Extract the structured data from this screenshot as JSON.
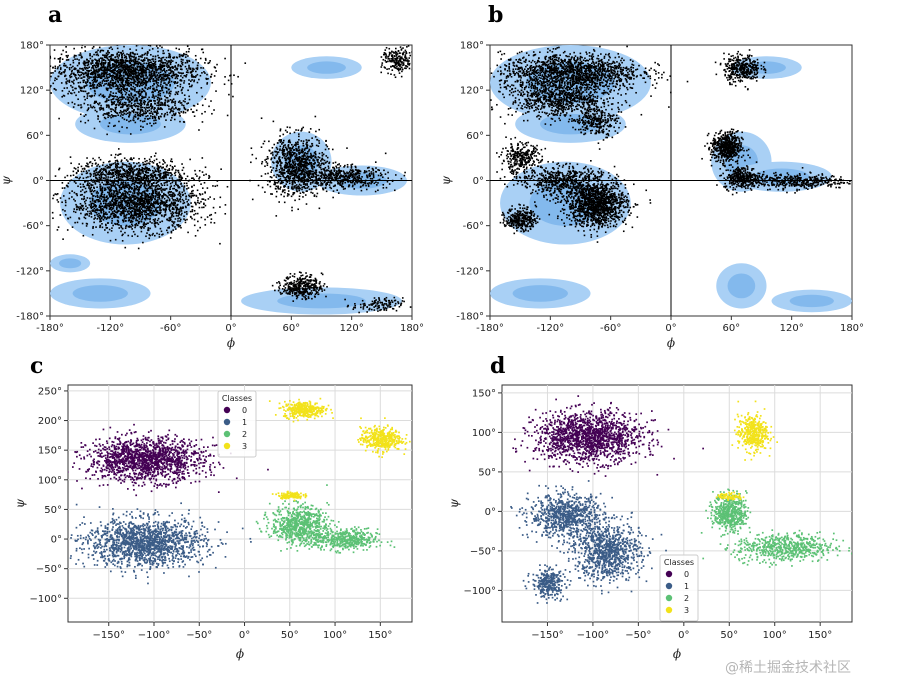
{
  "colors": {
    "favored": "#a9d0f5",
    "favored_dark": "#3d8fe0",
    "points": "#000000",
    "class0": "#440154",
    "class1": "#3b5c87",
    "class2": "#5cc175",
    "class3": "#f2e21a"
  },
  "watermark": "@稀土掘金技术社区",
  "chart_data": [
    {
      "panel": "a",
      "type": "scatter",
      "title": "a",
      "xlabel": "ϕ",
      "ylabel": "ψ",
      "xlim": [
        -180,
        180
      ],
      "ylim": [
        -180,
        180
      ],
      "xticks": [
        "-180°",
        "-120°",
        "-60°",
        "0°",
        "60°",
        "120°",
        "180°"
      ],
      "yticks": [
        "180°",
        "120°",
        "60°",
        "0°",
        "-60°",
        "-120°",
        "-180°"
      ],
      "favored_regions": [
        {
          "cx": -100,
          "cy": 130,
          "rx": 80,
          "ry": 50
        },
        {
          "cx": -100,
          "cy": 75,
          "rx": 55,
          "ry": 25
        },
        {
          "cx": -105,
          "cy": -30,
          "rx": 65,
          "ry": 55
        },
        {
          "cx": 70,
          "cy": 25,
          "rx": 30,
          "ry": 40
        },
        {
          "cx": 130,
          "cy": 0,
          "rx": 45,
          "ry": 20
        },
        {
          "cx": 95,
          "cy": 150,
          "rx": 35,
          "ry": 15
        },
        {
          "cx": -130,
          "cy": -150,
          "rx": 50,
          "ry": 20
        },
        {
          "cx": 90,
          "cy": -160,
          "rx": 80,
          "ry": 18
        },
        {
          "cx": -160,
          "cy": -110,
          "rx": 20,
          "ry": 12
        }
      ],
      "clusters": [
        {
          "cx": -105,
          "cy": 145,
          "rx": 75,
          "ry": 30,
          "n": 1800
        },
        {
          "cx": -95,
          "cy": 100,
          "rx": 55,
          "ry": 25,
          "n": 600
        },
        {
          "cx": -100,
          "cy": 10,
          "rx": 60,
          "ry": 20,
          "n": 700
        },
        {
          "cx": -95,
          "cy": -30,
          "rx": 65,
          "ry": 35,
          "n": 1700
        },
        {
          "cx": 65,
          "cy": 20,
          "rx": 30,
          "ry": 40,
          "n": 900
        },
        {
          "cx": 110,
          "cy": 5,
          "rx": 45,
          "ry": 15,
          "n": 450
        },
        {
          "cx": 70,
          "cy": -140,
          "rx": 20,
          "ry": 15,
          "n": 350
        },
        {
          "cx": 165,
          "cy": 160,
          "rx": 15,
          "ry": 18,
          "n": 200
        },
        {
          "cx": 145,
          "cy": -165,
          "rx": 25,
          "ry": 10,
          "n": 120
        }
      ]
    },
    {
      "panel": "b",
      "type": "scatter",
      "title": "b",
      "xlabel": "ϕ",
      "ylabel": "ψ",
      "xlim": [
        -180,
        180
      ],
      "ylim": [
        -180,
        180
      ],
      "xticks": [
        "-180°",
        "-120°",
        "-60°",
        "0°",
        "60°",
        "120°",
        "180°"
      ],
      "yticks": [
        "180°",
        "120°",
        "60°",
        "0°",
        "-60°",
        "-120°",
        "-180°"
      ],
      "favored_regions": [
        {
          "cx": -100,
          "cy": 130,
          "rx": 80,
          "ry": 50
        },
        {
          "cx": -100,
          "cy": 75,
          "rx": 55,
          "ry": 25
        },
        {
          "cx": -105,
          "cy": -30,
          "rx": 65,
          "ry": 55
        },
        {
          "cx": 70,
          "cy": 25,
          "rx": 30,
          "ry": 40
        },
        {
          "cx": 110,
          "cy": 5,
          "rx": 50,
          "ry": 20
        },
        {
          "cx": 95,
          "cy": 150,
          "rx": 35,
          "ry": 15
        },
        {
          "cx": -130,
          "cy": -150,
          "rx": 50,
          "ry": 20
        },
        {
          "cx": 70,
          "cy": -140,
          "rx": 25,
          "ry": 30
        },
        {
          "cx": 140,
          "cy": -160,
          "rx": 40,
          "ry": 15
        }
      ],
      "clusters": [
        {
          "cx": -100,
          "cy": 145,
          "rx": 70,
          "ry": 25,
          "n": 1400
        },
        {
          "cx": -110,
          "cy": 110,
          "rx": 50,
          "ry": 25,
          "n": 800
        },
        {
          "cx": -75,
          "cy": 80,
          "rx": 20,
          "ry": 20,
          "n": 250
        },
        {
          "cx": -150,
          "cy": 30,
          "rx": 20,
          "ry": 20,
          "n": 300
        },
        {
          "cx": -75,
          "cy": -30,
          "rx": 30,
          "ry": 30,
          "n": 1300
        },
        {
          "cx": -110,
          "cy": 0,
          "rx": 40,
          "ry": 20,
          "n": 500
        },
        {
          "cx": -150,
          "cy": -50,
          "rx": 15,
          "ry": 15,
          "n": 300
        },
        {
          "cx": 55,
          "cy": 45,
          "rx": 15,
          "ry": 20,
          "n": 550
        },
        {
          "cx": 70,
          "cy": 5,
          "rx": 18,
          "ry": 15,
          "n": 300
        },
        {
          "cx": 120,
          "cy": 0,
          "rx": 55,
          "ry": 10,
          "n": 400
        },
        {
          "cx": 70,
          "cy": 150,
          "rx": 18,
          "ry": 18,
          "n": 350
        }
      ]
    },
    {
      "panel": "c",
      "type": "scatter",
      "title": "c",
      "xlabel": "ϕ",
      "ylabel": "ψ",
      "xlim": [
        -195,
        185
      ],
      "ylim": [
        -140,
        260
      ],
      "xticks": [
        -150,
        -100,
        -50,
        0,
        50,
        100,
        150
      ],
      "xtick_labels": [
        "−150°",
        "−100°",
        "−50°",
        "0°",
        "50°",
        "100°",
        "150°"
      ],
      "yticks": [
        -100,
        -50,
        0,
        50,
        100,
        150,
        200,
        250
      ],
      "ytick_labels": [
        "−100°",
        "−50°",
        "0°",
        "50°",
        "100°",
        "150°",
        "200°",
        "250°"
      ],
      "legend": {
        "title": "Classes",
        "entries": [
          "0",
          "1",
          "2",
          "3"
        ],
        "position": "top-center"
      },
      "clusters": [
        {
          "class": 0,
          "cx": -110,
          "cy": 135,
          "rx": 70,
          "ry": 40,
          "n": 1500
        },
        {
          "class": 1,
          "cx": -110,
          "cy": -5,
          "rx": 72,
          "ry": 45,
          "n": 1500
        },
        {
          "class": 2,
          "cx": 60,
          "cy": 25,
          "rx": 35,
          "ry": 35,
          "n": 700
        },
        {
          "class": 2,
          "cx": 110,
          "cy": 0,
          "rx": 40,
          "ry": 20,
          "n": 450
        },
        {
          "class": 3,
          "cx": 65,
          "cy": 220,
          "rx": 25,
          "ry": 15,
          "n": 350
        },
        {
          "class": 3,
          "cx": 150,
          "cy": 170,
          "rx": 25,
          "ry": 22,
          "n": 400
        },
        {
          "class": 3,
          "cx": 50,
          "cy": 75,
          "rx": 15,
          "ry": 6,
          "n": 120
        }
      ]
    },
    {
      "panel": "d",
      "type": "scatter",
      "title": "d",
      "xlabel": "ϕ",
      "ylabel": "ψ",
      "xlim": [
        -200,
        185
      ],
      "ylim": [
        -140,
        160
      ],
      "xticks": [
        -150,
        -100,
        -50,
        0,
        50,
        100,
        150
      ],
      "xtick_labels": [
        "−150°",
        "−100°",
        "−50°",
        "0°",
        "50°",
        "100°",
        "150°"
      ],
      "yticks": [
        -100,
        -50,
        0,
        50,
        100,
        150
      ],
      "ytick_labels": [
        "−100°",
        "−50°",
        "0°",
        "50°",
        "100°",
        "150°"
      ],
      "legend": {
        "title": "Classes",
        "entries": [
          "0",
          "1",
          "2",
          "3"
        ],
        "position": "bottom-center"
      },
      "clusters": [
        {
          "class": 0,
          "cx": -105,
          "cy": 95,
          "rx": 65,
          "ry": 35,
          "n": 1500
        },
        {
          "class": 1,
          "cx": -130,
          "cy": -5,
          "rx": 45,
          "ry": 30,
          "n": 800
        },
        {
          "class": 1,
          "cx": -85,
          "cy": -50,
          "rx": 40,
          "ry": 40,
          "n": 900
        },
        {
          "class": 1,
          "cx": -150,
          "cy": -90,
          "rx": 20,
          "ry": 20,
          "n": 300
        },
        {
          "class": 2,
          "cx": 50,
          "cy": 0,
          "rx": 20,
          "ry": 25,
          "n": 500
        },
        {
          "class": 2,
          "cx": 110,
          "cy": -45,
          "rx": 60,
          "ry": 20,
          "n": 600
        },
        {
          "class": 3,
          "cx": 75,
          "cy": 100,
          "rx": 18,
          "ry": 25,
          "n": 400
        },
        {
          "class": 3,
          "cx": 50,
          "cy": 20,
          "rx": 15,
          "ry": 5,
          "n": 80
        }
      ]
    }
  ]
}
